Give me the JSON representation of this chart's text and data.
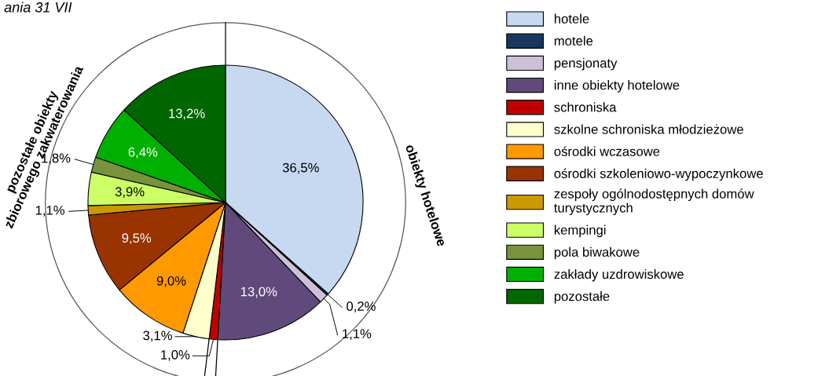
{
  "chart_data": {
    "type": "pie",
    "title": "ania 31 VII",
    "categories": [
      "hotele",
      "motele",
      "pensjonaty",
      "inne obiekty hotelowe",
      "schroniska",
      "szkolne schroniska młodzieżowe",
      "ośrodki wczasowe",
      "ośrodki szkoleniowo-wypoczynkowe",
      "zespoły ogólnodostępnych domów turystycznych",
      "kempingi",
      "pola biwakowe",
      "zakłady uzdrowiskowe",
      "pozostałe"
    ],
    "values": [
      36.5,
      0.2,
      1.1,
      13.0,
      1.0,
      3.1,
      9.0,
      9.5,
      1.1,
      3.9,
      1.8,
      6.4,
      13.2
    ],
    "value_labels": [
      "36,5%",
      "0,2%",
      "1,1%",
      "13,0%",
      "1,0%",
      "3,1%",
      "9,0%",
      "9,5%",
      "1,1%",
      "3,9%",
      "1,8%",
      "6,4%",
      "13,2%"
    ],
    "colors": [
      "#c6d9f1",
      "#17375e",
      "#ccc0da",
      "#604a7b",
      "#c00000",
      "#ffffcc",
      "#ff9900",
      "#993300",
      "#cc9900",
      "#ccff66",
      "#77933c",
      "#00b000",
      "#006600"
    ],
    "annotations": [
      "obiekty hotelowe",
      "pozostałe obiekty\nzbiorowego zakwaterowania"
    ],
    "legend": "right"
  }
}
